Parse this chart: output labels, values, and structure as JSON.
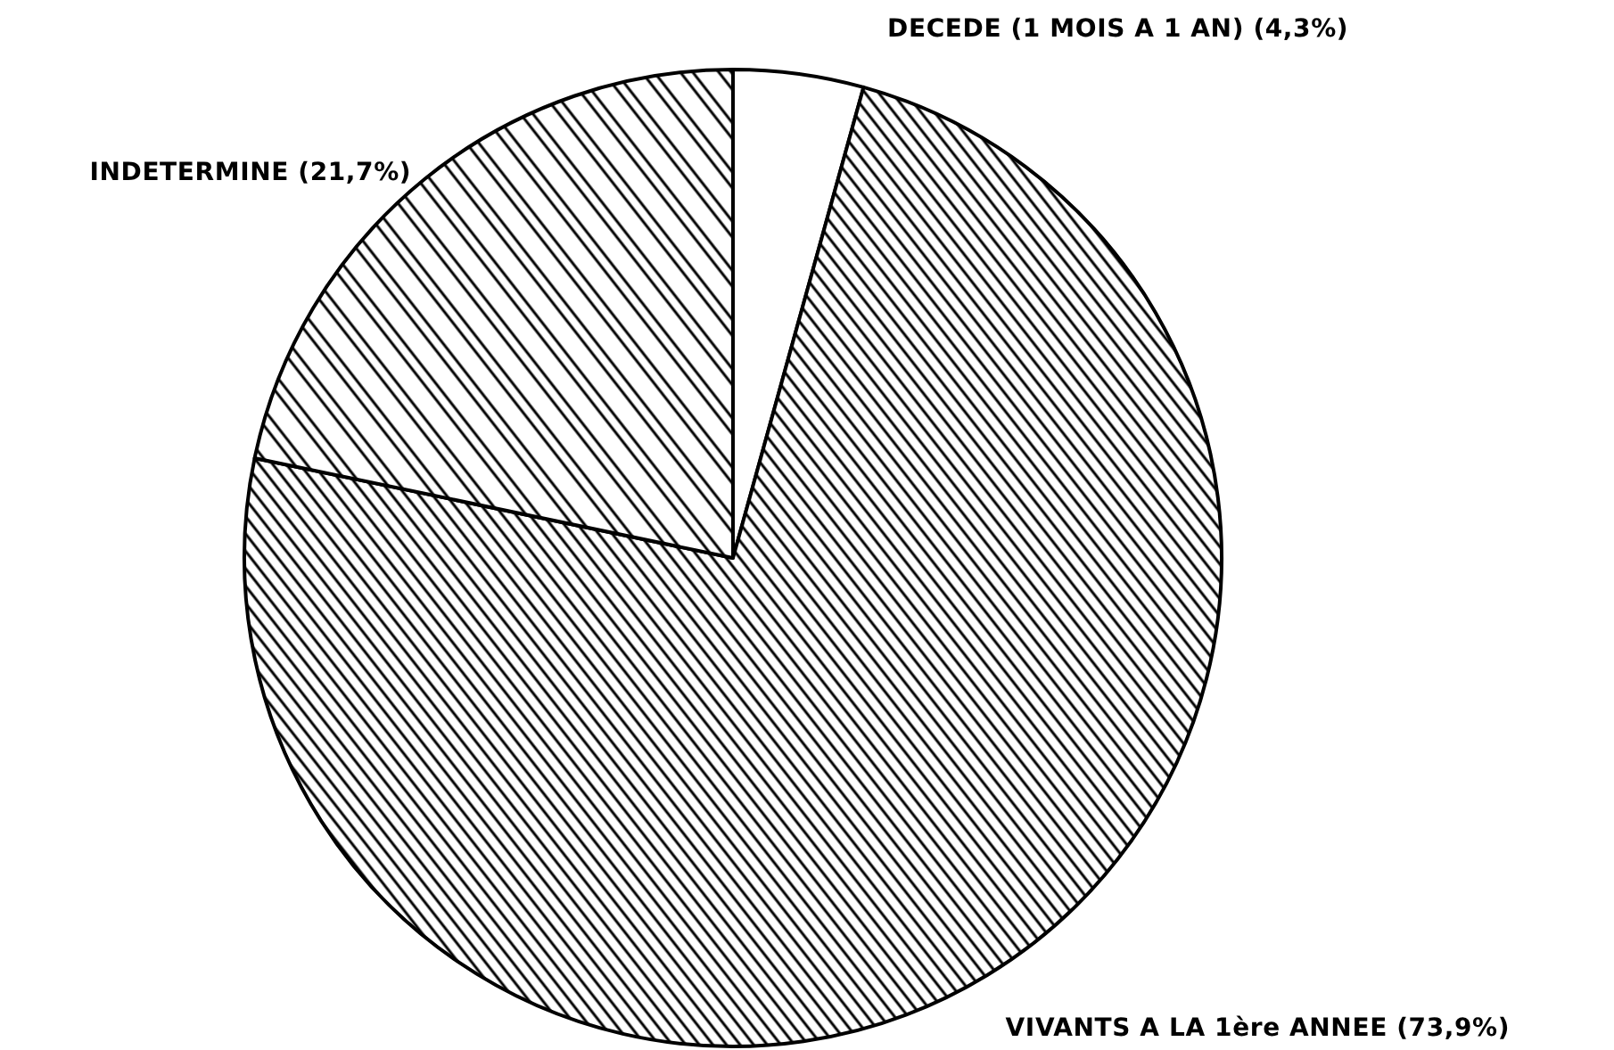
{
  "chart_data": {
    "type": "pie",
    "categories": [
      "DECEDE (1 MOIS A 1 AN)",
      "VIVANTS A LA 1ère ANNEE",
      "INDETERMINE"
    ],
    "values": [
      4.3,
      73.9,
      21.7
    ],
    "colors": [
      "#ffffff",
      "#000000",
      "#000000"
    ],
    "value_labels": [
      "(4,3%)",
      "(73,9%)",
      "(21,7%)"
    ]
  }
}
